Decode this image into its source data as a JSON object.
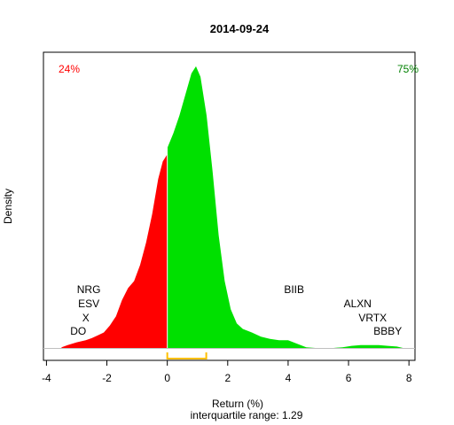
{
  "chart_data": {
    "type": "area",
    "title": "2014-09-24",
    "xlabel": "Return (%)",
    "ylabel": "Density",
    "subtitle": "interquartile range: 1.29",
    "xlim": [
      -4.1,
      8.2
    ],
    "ylim": [
      0,
      0.42
    ],
    "x_ticks": [
      "-4",
      "-2",
      "0",
      "2",
      "4",
      "6",
      "8"
    ],
    "x_tick_values": [
      -4,
      -2,
      0,
      2,
      4,
      6,
      8
    ],
    "negative_share": "24%",
    "positive_share": "75%",
    "negative_color": "#ff0000",
    "positive_color": "#00e000",
    "share_negative_color": "#ff0000",
    "share_positive_color": "#008000",
    "iqr_color": "#ffc000",
    "iqr_range": [
      0.0,
      1.29
    ],
    "density": {
      "x": [
        -3.5,
        -3.3,
        -3.0,
        -2.7,
        -2.5,
        -2.3,
        -2.1,
        -1.9,
        -1.7,
        -1.5,
        -1.3,
        -1.1,
        -0.9,
        -0.7,
        -0.5,
        -0.3,
        -0.15,
        0.0,
        0.01,
        0.2,
        0.4,
        0.6,
        0.8,
        0.95,
        1.1,
        1.3,
        1.5,
        1.7,
        1.9,
        2.1,
        2.3,
        2.5,
        2.8,
        3.1,
        3.4,
        3.7,
        4.0,
        4.3,
        4.6,
        4.9,
        5.2,
        5.5,
        5.8,
        6.1,
        6.4,
        6.7,
        7.0,
        7.3,
        7.6,
        7.8
      ],
      "y": [
        0.001,
        0.004,
        0.008,
        0.011,
        0.014,
        0.018,
        0.022,
        0.032,
        0.045,
        0.068,
        0.085,
        0.095,
        0.118,
        0.15,
        0.19,
        0.24,
        0.265,
        0.275,
        0.285,
        0.305,
        0.33,
        0.36,
        0.39,
        0.4,
        0.385,
        0.33,
        0.25,
        0.16,
        0.095,
        0.055,
        0.035,
        0.027,
        0.022,
        0.016,
        0.013,
        0.011,
        0.011,
        0.006,
        0.001,
        0.0,
        0.0,
        0.0,
        0.001,
        0.003,
        0.004,
        0.004,
        0.004,
        0.003,
        0.002,
        0.0
      ]
    },
    "stocks": [
      {
        "label": "NRG",
        "x": -2.6,
        "y": 0.078
      },
      {
        "label": "ESV",
        "x": -2.6,
        "y": 0.058
      },
      {
        "label": "X",
        "x": -2.7,
        "y": 0.038
      },
      {
        "label": "DO",
        "x": -2.95,
        "y": 0.019
      },
      {
        "label": "BIIB",
        "x": 4.2,
        "y": 0.078
      },
      {
        "label": "ALXN",
        "x": 6.3,
        "y": 0.058
      },
      {
        "label": "VRTX",
        "x": 6.8,
        "y": 0.038
      },
      {
        "label": "BBBY",
        "x": 7.3,
        "y": 0.019
      }
    ]
  }
}
